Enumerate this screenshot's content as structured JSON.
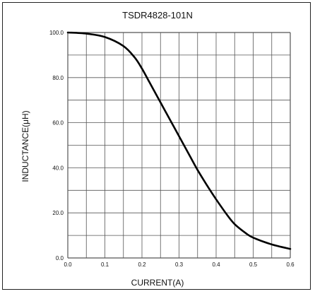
{
  "chart_data": {
    "type": "line",
    "title": "TSDR4828-101N",
    "xlabel": "CURRENT(A)",
    "ylabel": "INDUCTANCE(μH)",
    "xlim": [
      0,
      0.6
    ],
    "ylim": [
      0,
      100
    ],
    "x_ticks": [
      "0.0",
      "0.1",
      "0.2",
      "0.3",
      "0.4",
      "0.5",
      "0.6"
    ],
    "y_ticks": [
      "0.0",
      "20.0",
      "40.0",
      "60.0",
      "80.0",
      "100.0"
    ],
    "grid": true,
    "series": [
      {
        "color": "#000000",
        "x": [
          0.0,
          0.05,
          0.1,
          0.15,
          0.18,
          0.2,
          0.22,
          0.25,
          0.28,
          0.3,
          0.33,
          0.35,
          0.38,
          0.4,
          0.43,
          0.45,
          0.48,
          0.5,
          0.55,
          0.6
        ],
        "y": [
          100,
          99.5,
          98,
          94,
          89,
          84,
          78,
          69,
          60,
          54,
          45,
          39,
          31,
          26,
          19,
          15,
          11,
          9,
          6,
          4
        ]
      }
    ]
  }
}
